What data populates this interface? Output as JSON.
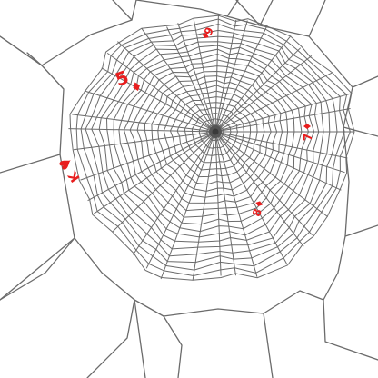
{
  "colors": {
    "background": "#ffffff",
    "web_strand": "#6b6b6b",
    "card_red": "#e81e1e"
  },
  "web": {
    "radial_count": 40,
    "ring_count": 22
  },
  "cards": [
    {
      "rank": "9",
      "suit": "diamond",
      "suit_icon": "diamond-icon"
    },
    {
      "rank": "5",
      "suit": "diamond",
      "suit_icon": "diamond-icon"
    },
    {
      "rank": "7",
      "suit": "diamond",
      "suit_icon": "diamond-icon"
    },
    {
      "rank": "K",
      "suit": "heart",
      "suit_icon": "heart-icon"
    },
    {
      "rank": "8",
      "suit": "diamond",
      "suit_icon": "diamond-icon"
    }
  ]
}
